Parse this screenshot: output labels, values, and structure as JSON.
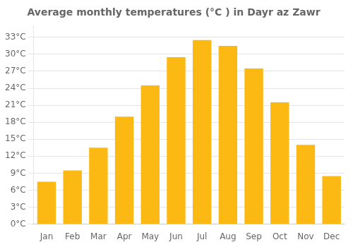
{
  "chart_data": {
    "type": "bar",
    "title": "Average monthly temperatures (°C ) in Dayr az Zawr",
    "categories": [
      "Jan",
      "Feb",
      "Mar",
      "Apr",
      "May",
      "Jun",
      "Jul",
      "Aug",
      "Sep",
      "Oct",
      "Nov",
      "Dec"
    ],
    "values": [
      7.5,
      9.5,
      13.5,
      19.0,
      24.5,
      29.5,
      32.5,
      31.5,
      27.5,
      21.5,
      14.0,
      8.5
    ],
    "color": "#FDB913",
    "ylim": [
      0,
      35
    ],
    "yticks": [
      {
        "value": 0,
        "label": "0°C"
      },
      {
        "value": 3,
        "label": "3°C"
      },
      {
        "value": 6,
        "label": "6°C"
      },
      {
        "value": 9,
        "label": "9°C"
      },
      {
        "value": 12,
        "label": "12°C"
      },
      {
        "value": 15,
        "label": "15°C"
      },
      {
        "value": 18,
        "label": "18°C"
      },
      {
        "value": 21,
        "label": "21°C"
      },
      {
        "value": 24,
        "label": "24°C"
      },
      {
        "value": 27,
        "label": "27°C"
      },
      {
        "value": 30,
        "label": "30°C"
      },
      {
        "value": 33,
        "label": "33°C"
      }
    ],
    "grid": true
  }
}
